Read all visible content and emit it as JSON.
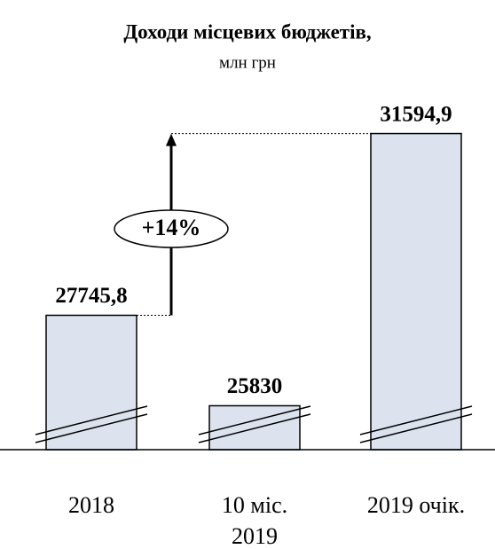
{
  "chart_data": {
    "type": "bar",
    "title": "Доходи місцевих бюджетів,",
    "subtitle": "млн грн",
    "categories": [
      "2018",
      "10 міс.\n2019",
      "2019 очік."
    ],
    "values": [
      27745.8,
      25830,
      31594.9
    ],
    "value_labels": [
      "27745,8",
      "25830",
      "31594,9"
    ],
    "color": "#dce3ef",
    "ylim": [
      24900,
      32000
    ],
    "annotation": "+14%"
  }
}
